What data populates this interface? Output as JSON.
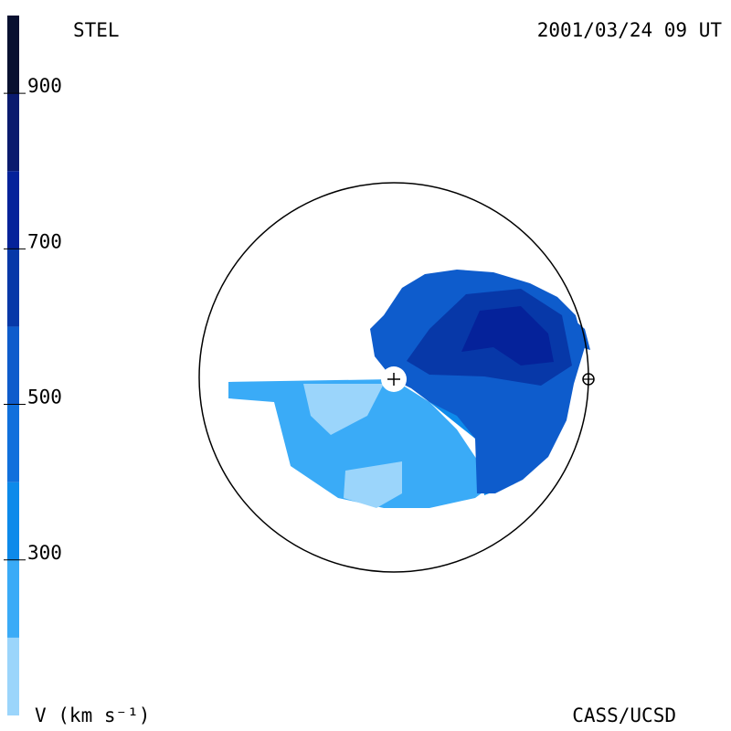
{
  "header": {
    "left": "STEL",
    "right": "2001/03/24 09 UT"
  },
  "footer": {
    "left": "V (km s⁻¹)",
    "right": "CASS/UCSD"
  },
  "colorbar": {
    "lim": [
      100,
      1000
    ],
    "ticks": [
      300,
      500,
      700,
      900
    ],
    "levels": [
      100,
      200,
      300,
      400,
      500,
      600,
      700,
      800,
      900,
      1000
    ],
    "colors": [
      "#9bd5fb",
      "#3aabf7",
      "#0d8aea",
      "#1170dc",
      "#0e5ccc",
      "#0738a8",
      "#05229a",
      "#0a1a6e",
      "#081030"
    ]
  }
}
